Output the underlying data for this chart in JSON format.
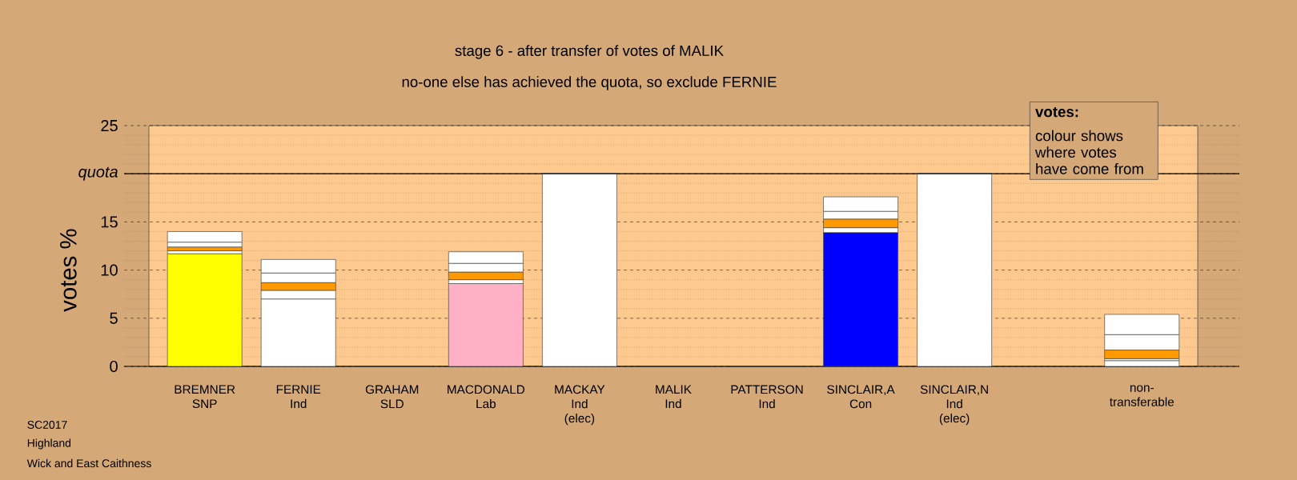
{
  "chart_data": {
    "type": "bar",
    "stacked": true,
    "title": "stage 6 - after transfer of votes of MALIK",
    "subtitle": "no-one else has achieved the quota, so exclude FERNIE",
    "ylabel": "votes %",
    "categories": [
      "BREMNER SNP",
      "FERNIE Ind",
      "GRAHAM SLD",
      "MACDONALD Lab",
      "MACKAY Ind (elec)",
      "MALIK Ind",
      "PATTERSON Ind",
      "SINCLAIR,A Con",
      "SINCLAIR,N Ind (elec)",
      null,
      "non-transferable"
    ],
    "series": [
      {
        "colors": [
          "#ffff00",
          "#ffffff",
          "#ff9900",
          "#ffb0c4",
          "#ffffff",
          "#ffffff",
          "#ffffff",
          "#0000ff",
          "#ffffff",
          null,
          "#ffffff"
        ],
        "values": [
          11.7,
          7.0,
          0,
          8.6,
          20,
          0,
          0,
          13.9,
          20,
          null,
          0.6
        ]
      },
      {
        "color": "#ffffff",
        "values": [
          0.3,
          0.9,
          0,
          0.4,
          0,
          0,
          0,
          0.5,
          0,
          null,
          0.2
        ]
      },
      {
        "color": "#ff9900",
        "values": [
          0.4,
          0.8,
          0,
          0.8,
          0,
          0,
          0,
          0.9,
          0,
          null,
          0.9
        ]
      },
      {
        "color": "#ffffff",
        "values": [
          0.5,
          1.0,
          0,
          0.9,
          0,
          0,
          0,
          0.8,
          0,
          null,
          1.6
        ]
      },
      {
        "color": "#ffffff",
        "values": [
          1.1,
          1.4,
          0,
          1.2,
          0,
          0,
          0,
          1.5,
          0,
          null,
          2.1
        ]
      }
    ],
    "ylim": [
      0,
      25
    ],
    "yticks": [
      0,
      5,
      10,
      15,
      {
        "value": 20,
        "label": "quota"
      },
      25
    ],
    "grid": "y",
    "ref_lines": [
      {
        "axis": "y",
        "value": 20
      }
    ],
    "annotations": [
      "votes:",
      "colour shows where votes have come from",
      "SC2017",
      "Highland",
      "Wick and East Caithness"
    ]
  }
}
